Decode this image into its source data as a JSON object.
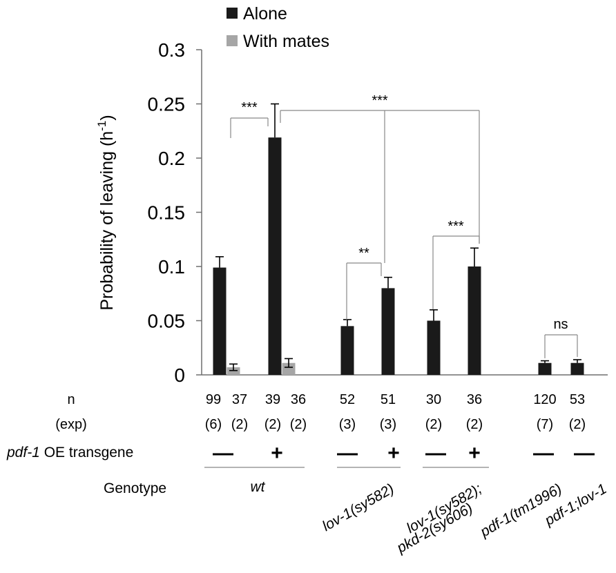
{
  "legend": [
    {
      "label": "Alone",
      "color": "#1a1a1a"
    },
    {
      "label": "With mates",
      "color": "#a6a6a6"
    }
  ],
  "chart_data": {
    "type": "bar",
    "ylabel_main": "Probability of leaving (h",
    "ylabel_sup": "-1",
    "ylabel_end": ")",
    "ylim": [
      0,
      0.3
    ],
    "yticks": [
      {
        "v": 0,
        "label": "0"
      },
      {
        "v": 0.05,
        "label": "0.05"
      },
      {
        "v": 0.1,
        "label": "0.1"
      },
      {
        "v": 0.15,
        "label": "0.15"
      },
      {
        "v": 0.2,
        "label": "0.2"
      },
      {
        "v": 0.25,
        "label": "0.25"
      },
      {
        "v": 0.3,
        "label": "0.3"
      }
    ],
    "bars": [
      {
        "series": "Alone",
        "value": 0.099,
        "err": 0.01,
        "n": "99",
        "exp": "(6)"
      },
      {
        "series": "With mates",
        "value": 0.007,
        "err": 0.003,
        "n": "37",
        "exp": "(2)"
      },
      {
        "series": "Alone",
        "value": 0.219,
        "err": 0.031,
        "n": "39",
        "exp": "(2)"
      },
      {
        "series": "With mates",
        "value": 0.011,
        "err": 0.004,
        "n": "36",
        "exp": "(2)"
      },
      {
        "series": "Alone",
        "value": 0.045,
        "err": 0.006,
        "n": "52",
        "exp": "(3)"
      },
      {
        "series": "Alone",
        "value": 0.08,
        "err": 0.01,
        "n": "51",
        "exp": "(3)"
      },
      {
        "series": "Alone",
        "value": 0.05,
        "err": 0.01,
        "n": "30",
        "exp": "(2)"
      },
      {
        "series": "Alone",
        "value": 0.1,
        "err": 0.017,
        "n": "36",
        "exp": "(2)"
      },
      {
        "series": "Alone",
        "value": 0.011,
        "err": 0.002,
        "n": "120",
        "exp": "(7)"
      },
      {
        "series": "Alone",
        "value": 0.011,
        "err": 0.003,
        "n": "53",
        "exp": "(2)"
      }
    ],
    "significance": [
      {
        "label": "***"
      },
      {
        "label": "***"
      },
      {
        "label": "**"
      },
      {
        "label": "***"
      },
      {
        "label": "ns"
      }
    ]
  },
  "rows": {
    "n_label": "n",
    "exp_label": "(exp)",
    "transgene_italic": "pdf-1",
    "transgene_rest": " OE transgene",
    "transgene_signs": [
      "—",
      "+",
      "—",
      "+",
      "—",
      "+",
      "—",
      "—"
    ],
    "genotype_label": "Genotype",
    "genotypes": [
      "wt",
      "lov-1(sy582)",
      "lov-1(sy582);",
      "pkd-2(sy606)",
      "pdf-1(tm1996)",
      "pdf-1;lov-1"
    ]
  }
}
